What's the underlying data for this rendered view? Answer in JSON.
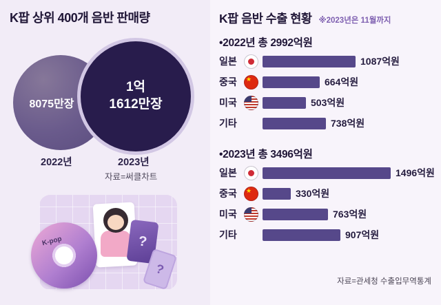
{
  "left_panel": {
    "title": "K팝 상위 400개 음반 판매량",
    "venn": {
      "c2022": {
        "value": "8075만장",
        "year": "2022년"
      },
      "c2023": {
        "value_line1": "1억",
        "value_line2": "1612만장",
        "year": "2023년"
      }
    },
    "source": "자료=써클차트",
    "illustration": {
      "cd_label": "K-pop",
      "card1_symbol": "?",
      "card2_symbol": "?"
    }
  },
  "right_panel": {
    "title": "K팝 음반 수출 현황",
    "note": "※2023년은 11월까지",
    "source": "자료=관세청 수출입무역통계"
  },
  "icons": {
    "japan_flag": "japan-flag-icon (white circle, red sun)",
    "china_flag": "china-flag-icon (red circle, yellow star)",
    "usa_flag": "usa-flag-icon (stripes, blue canton)",
    "cd": "cd-icon (purple-pink disc)"
  },
  "colors": {
    "background": "#f2ecf7",
    "bar": "#56488a",
    "circle_2022": "#6a5b8c",
    "circle_2023": "#281c4c",
    "title_text": "#201637",
    "note_accent": "#7e5fb0"
  },
  "chart_data": [
    {
      "type": "area",
      "subtype": "proportional-circles",
      "title": "K팝 상위 400개 음반 판매량",
      "categories": [
        "2022년",
        "2023년"
      ],
      "values": [
        8075,
        11612
      ],
      "unit": "만장",
      "labels": [
        "8075만장",
        "1억 1612만장"
      ],
      "source": "자료=써클차트"
    },
    {
      "type": "bar",
      "title": "K팝 음반 수출 현황",
      "note": "※2023년은 11월까지",
      "unit": "억원",
      "orientation": "horizontal",
      "groups": [
        {
          "name": "2022년",
          "total": 2992,
          "header": "•2022년 총 2992억원",
          "categories": [
            "일본",
            "중국",
            "미국",
            "기타"
          ],
          "values": [
            1087,
            664,
            503,
            738
          ],
          "labels": [
            "1087억원",
            "664억원",
            "503억원",
            "738억원"
          ],
          "flags": [
            "japan",
            "china",
            "usa",
            null
          ]
        },
        {
          "name": "2023년",
          "total": 3496,
          "header": "•2023년 총 3496억원",
          "categories": [
            "일본",
            "중국",
            "미국",
            "기타"
          ],
          "values": [
            1496,
            330,
            763,
            907
          ],
          "labels": [
            "1496억원",
            "330억원",
            "763억원",
            "907억원"
          ],
          "flags": [
            "japan",
            "china",
            "usa",
            null
          ]
        }
      ],
      "source": "자료=관세청 수출입무역통계"
    }
  ]
}
